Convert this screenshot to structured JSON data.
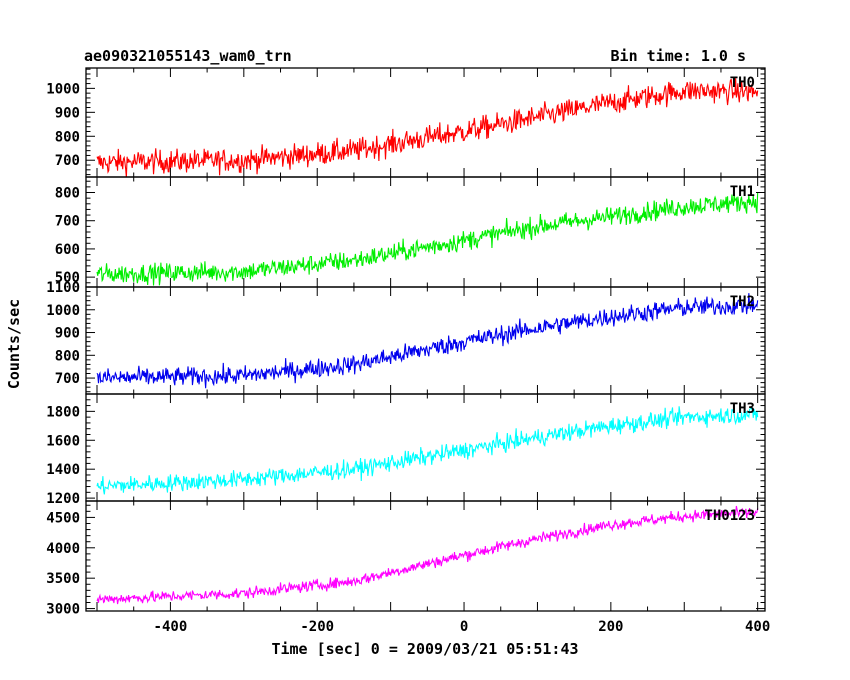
{
  "header": {
    "title": "ae090321055143_wam0_trn",
    "bin_time": "Bin time: 1.0 s"
  },
  "chart_data": {
    "type": "line",
    "xlabel": "Time [sec] 0 = 2009/03/21 05:51:43",
    "ylabel": "Counts/sec",
    "xlim": [
      -515,
      410
    ],
    "x_ticks": [
      -400,
      -200,
      0,
      200,
      400
    ],
    "x_range": [
      -500,
      400
    ],
    "x_step": 1,
    "panels": [
      {
        "name": "TH0",
        "color": "#ff0000",
        "ylim": [
          630,
          1085
        ],
        "y_ticks": [
          700,
          800,
          900,
          1000
        ],
        "trend": {
          "x": [
            -500,
            -300,
            -150,
            0,
            100,
            200,
            300,
            400
          ],
          "y": [
            690,
            700,
            740,
            820,
            880,
            940,
            990,
            985
          ]
        },
        "noise": 45
      },
      {
        "name": "TH1",
        "color": "#00ee00",
        "ylim": [
          465,
          855
        ],
        "y_ticks": [
          500,
          600,
          700,
          800
        ],
        "trend": {
          "x": [
            -500,
            -300,
            -150,
            0,
            100,
            200,
            300,
            400
          ],
          "y": [
            510,
            520,
            560,
            630,
            680,
            715,
            750,
            770
          ]
        },
        "noise": 32
      },
      {
        "name": "TH2",
        "color": "#0000ee",
        "ylim": [
          630,
          1100
        ],
        "y_ticks": [
          700,
          800,
          900,
          1000,
          1100
        ],
        "trend": {
          "x": [
            -500,
            -300,
            -150,
            0,
            100,
            200,
            300,
            400
          ],
          "y": [
            700,
            710,
            760,
            860,
            920,
            970,
            1010,
            1020
          ]
        },
        "noise": 38
      },
      {
        "name": "TH3",
        "color": "#00ffff",
        "ylim": [
          1180,
          1920
        ],
        "y_ticks": [
          1200,
          1400,
          1600,
          1800
        ],
        "trend": {
          "x": [
            -500,
            -300,
            -150,
            0,
            100,
            200,
            300,
            400
          ],
          "y": [
            1280,
            1330,
            1400,
            1530,
            1620,
            1700,
            1760,
            1780
          ]
        },
        "noise": 55
      },
      {
        "name": "TH0123",
        "color": "#ff00ff",
        "ylim": [
          2960,
          4770
        ],
        "y_ticks": [
          3000,
          3500,
          4000,
          4500
        ],
        "trend": {
          "x": [
            -500,
            -300,
            -150,
            0,
            100,
            200,
            300,
            400
          ],
          "y": [
            3150,
            3250,
            3450,
            3880,
            4150,
            4380,
            4520,
            4580
          ]
        },
        "noise": 85
      }
    ]
  }
}
